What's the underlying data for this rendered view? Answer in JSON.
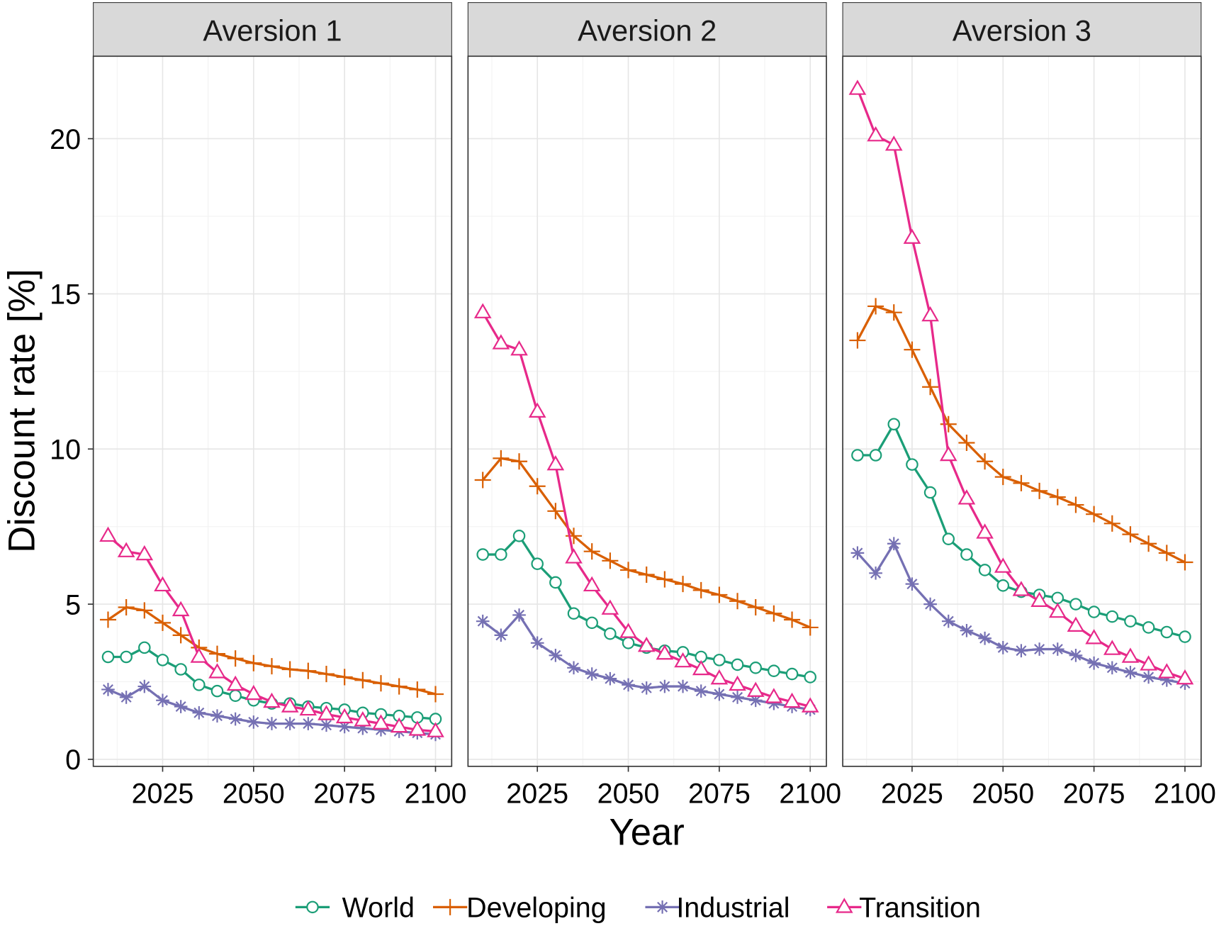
{
  "chart_data": {
    "type": "line",
    "xlabel": "Year",
    "ylabel": "Discount rate [%]",
    "ylim": [
      0,
      22.5
    ],
    "xlim": [
      2006,
      2104
    ],
    "x_ticks": [
      2025,
      2050,
      2075,
      2100
    ],
    "y_ticks": [
      0,
      5,
      10,
      15,
      20
    ],
    "grid": true,
    "legend_position": "bottom",
    "x": [
      2010,
      2015,
      2020,
      2025,
      2030,
      2035,
      2040,
      2045,
      2050,
      2055,
      2060,
      2065,
      2070,
      2075,
      2080,
      2085,
      2090,
      2095,
      2100
    ],
    "series_styles": [
      {
        "name": "World",
        "color": "#1b9e77",
        "marker": "open-circle"
      },
      {
        "name": "Developing",
        "color": "#d95f02",
        "marker": "plus"
      },
      {
        "name": "Industrial",
        "color": "#7570b3",
        "marker": "asterisk"
      },
      {
        "name": "Transition",
        "color": "#e7298a",
        "marker": "open-triangle"
      }
    ],
    "panels": [
      {
        "title": "Aversion 1",
        "series": [
          {
            "name": "World",
            "values": [
              3.3,
              3.3,
              3.6,
              3.2,
              2.9,
              2.4,
              2.2,
              2.05,
              1.9,
              1.8,
              1.8,
              1.7,
              1.65,
              1.6,
              1.5,
              1.45,
              1.4,
              1.35,
              1.3
            ]
          },
          {
            "name": "Developing",
            "values": [
              4.5,
              4.9,
              4.8,
              4.4,
              4.0,
              3.6,
              3.4,
              3.25,
              3.1,
              3.0,
              2.9,
              2.85,
              2.75,
              2.65,
              2.55,
              2.45,
              2.35,
              2.25,
              2.1
            ]
          },
          {
            "name": "Industrial",
            "values": [
              2.25,
              2.0,
              2.35,
              1.9,
              1.7,
              1.5,
              1.4,
              1.3,
              1.2,
              1.15,
              1.15,
              1.15,
              1.1,
              1.05,
              1.0,
              0.95,
              0.9,
              0.85,
              0.8
            ]
          },
          {
            "name": "Transition",
            "values": [
              7.2,
              6.7,
              6.6,
              5.6,
              4.8,
              3.3,
              2.8,
              2.4,
              2.1,
              1.85,
              1.7,
              1.6,
              1.45,
              1.35,
              1.25,
              1.15,
              1.05,
              0.95,
              0.9
            ]
          }
        ]
      },
      {
        "title": "Aversion 2",
        "series": [
          {
            "name": "World",
            "values": [
              6.6,
              6.6,
              7.2,
              6.3,
              5.7,
              4.7,
              4.4,
              4.05,
              3.75,
              3.6,
              3.5,
              3.45,
              3.3,
              3.2,
              3.05,
              2.95,
              2.85,
              2.75,
              2.65
            ]
          },
          {
            "name": "Developing",
            "values": [
              9.0,
              9.7,
              9.6,
              8.8,
              8.0,
              7.2,
              6.7,
              6.4,
              6.1,
              5.95,
              5.8,
              5.65,
              5.45,
              5.3,
              5.1,
              4.9,
              4.7,
              4.5,
              4.25
            ]
          },
          {
            "name": "Industrial",
            "values": [
              4.45,
              4.0,
              4.65,
              3.75,
              3.35,
              2.95,
              2.75,
              2.6,
              2.4,
              2.3,
              2.35,
              2.35,
              2.2,
              2.1,
              2.0,
              1.9,
              1.8,
              1.7,
              1.6
            ]
          },
          {
            "name": "Transition",
            "values": [
              14.4,
              13.4,
              13.2,
              11.2,
              9.5,
              6.5,
              5.6,
              4.85,
              4.1,
              3.65,
              3.4,
              3.15,
              2.9,
              2.6,
              2.4,
              2.2,
              2.0,
              1.85,
              1.7
            ]
          }
        ]
      },
      {
        "title": "Aversion 3",
        "series": [
          {
            "name": "World",
            "values": [
              9.8,
              9.8,
              10.8,
              9.5,
              8.6,
              7.1,
              6.6,
              6.1,
              5.6,
              5.4,
              5.3,
              5.2,
              5.0,
              4.75,
              4.6,
              4.45,
              4.25,
              4.1,
              3.95
            ]
          },
          {
            "name": "Developing",
            "values": [
              13.5,
              14.6,
              14.4,
              13.2,
              12.0,
              10.8,
              10.2,
              9.6,
              9.1,
              8.9,
              8.65,
              8.45,
              8.2,
              7.9,
              7.6,
              7.25,
              6.95,
              6.65,
              6.35
            ]
          },
          {
            "name": "Industrial",
            "values": [
              6.65,
              6.0,
              6.95,
              5.65,
              5.0,
              4.45,
              4.15,
              3.9,
              3.6,
              3.5,
              3.55,
              3.55,
              3.35,
              3.1,
              2.95,
              2.8,
              2.65,
              2.55,
              2.45
            ]
          },
          {
            "name": "Transition",
            "values": [
              21.6,
              20.1,
              19.8,
              16.8,
              14.3,
              9.8,
              8.4,
              7.3,
              6.2,
              5.45,
              5.1,
              4.75,
              4.3,
              3.9,
              3.55,
              3.3,
              3.05,
              2.8,
              2.6
            ]
          }
        ]
      }
    ]
  }
}
